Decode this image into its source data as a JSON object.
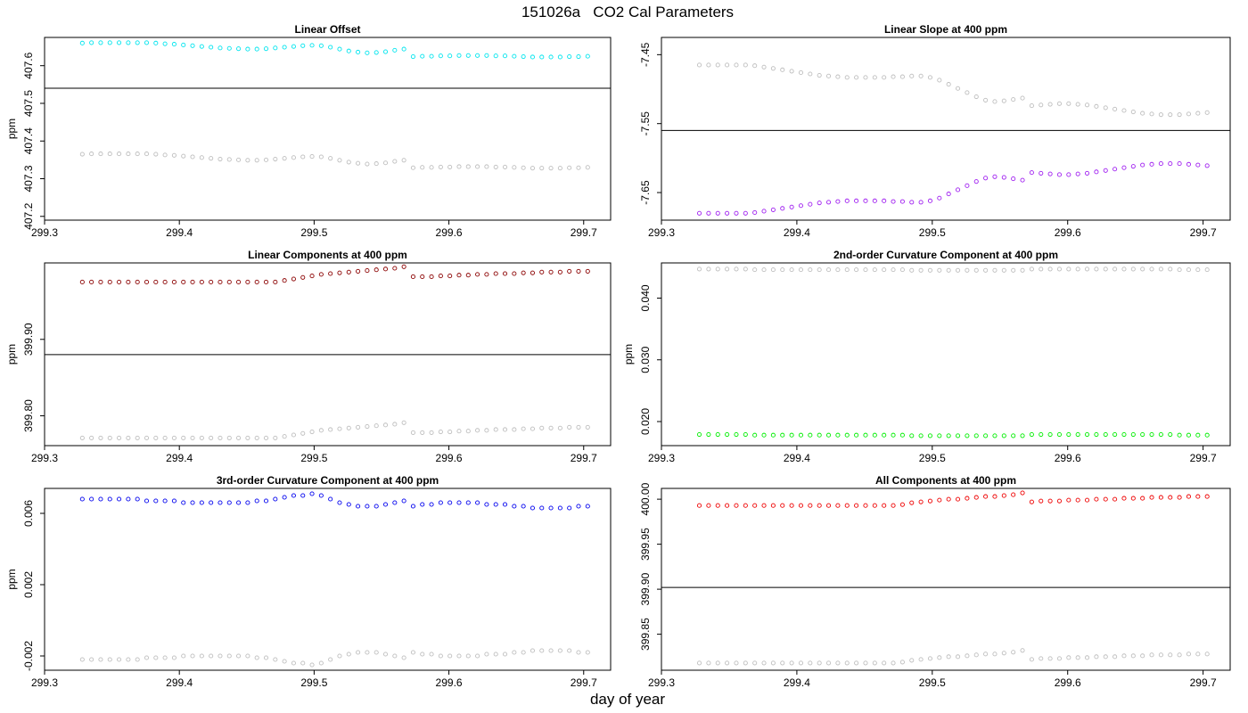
{
  "title": "151026a   CO2 Cal Parameters",
  "xlabel": "day of year",
  "chart_data": [
    {
      "type": "scatter",
      "title": "Linear Offset",
      "ylabel": "ppm",
      "xlim": [
        299.3,
        299.72
      ],
      "ylim": [
        407.19,
        407.675
      ],
      "xticks": [
        "299.3",
        "299.4",
        "299.5",
        "299.6",
        "299.7"
      ],
      "yticks": [
        "407.2",
        "407.3",
        "407.4",
        "407.5",
        "407.6"
      ],
      "hline": 407.54,
      "main_color": "#00e5ee",
      "shape": [
        407.66,
        407.661,
        407.661,
        407.661,
        407.661,
        407.661,
        407.661,
        407.661,
        407.66,
        407.658,
        407.657,
        407.655,
        407.653,
        407.651,
        407.649,
        407.647,
        407.646,
        407.645,
        407.644,
        407.644,
        407.645,
        407.647,
        407.649,
        407.651,
        407.653,
        407.654,
        407.653,
        407.649,
        407.644,
        407.639,
        407.636,
        407.634,
        407.635,
        407.637,
        407.641,
        407.644,
        407.624,
        407.625,
        407.625,
        407.626,
        407.626,
        407.627,
        407.627,
        407.627,
        407.627,
        407.626,
        407.626,
        407.625,
        407.624,
        407.623,
        407.623,
        407.623,
        407.623,
        407.624,
        407.624,
        407.625
      ],
      "shape_ref": 407.54,
      "gray_ref": 407.245,
      "gray_scale": 1.0
    },
    {
      "type": "scatter",
      "title": "Linear Slope at 400 ppm",
      "ylabel": "",
      "xlim": [
        299.3,
        299.72
      ],
      "ylim": [
        -7.69,
        -7.425
      ],
      "xticks": [
        "299.3",
        "299.4",
        "299.5",
        "299.6",
        "299.7"
      ],
      "yticks": [
        "-7.45",
        "-7.55",
        "-7.65"
      ],
      "yticks_values": [
        -7.45,
        -7.55,
        -7.65
      ],
      "hline": -7.56,
      "main_color": "#a020f0",
      "shape": [
        -7.68,
        -7.68,
        -7.68,
        -7.68,
        -7.68,
        -7.68,
        -7.679,
        -7.677,
        -7.675,
        -7.673,
        -7.671,
        -7.669,
        -7.667,
        -7.665,
        -7.664,
        -7.663,
        -7.662,
        -7.662,
        -7.662,
        -7.662,
        -7.662,
        -7.663,
        -7.663,
        -7.664,
        -7.664,
        -7.662,
        -7.658,
        -7.652,
        -7.646,
        -7.64,
        -7.634,
        -7.629,
        -7.627,
        -7.628,
        -7.63,
        -7.632,
        -7.621,
        -7.622,
        -7.623,
        -7.624,
        -7.624,
        -7.623,
        -7.622,
        -7.62,
        -7.618,
        -7.616,
        -7.614,
        -7.612,
        -7.61,
        -7.609,
        -7.608,
        -7.608,
        -7.608,
        -7.609,
        -7.61,
        -7.611
      ],
      "shape_ref": -7.68,
      "gray_ref": -7.465,
      "gray_scale": -1.0
    },
    {
      "type": "scatter",
      "title": "Linear Components at 400 ppm",
      "ylabel": "ppm",
      "xlim": [
        299.3,
        299.72
      ],
      "ylim": [
        399.761,
        400.0
      ],
      "xticks": [
        "299.3",
        "299.4",
        "299.5",
        "299.6",
        "299.7"
      ],
      "yticks": [
        "399.80",
        "399.90"
      ],
      "yticks_values": [
        399.8,
        399.9
      ],
      "hline": 399.88,
      "main_color": "#8b0000",
      "shape": [
        399.975,
        399.975,
        399.975,
        399.975,
        399.975,
        399.975,
        399.975,
        399.975,
        399.975,
        399.975,
        399.975,
        399.975,
        399.975,
        399.975,
        399.975,
        399.975,
        399.975,
        399.975,
        399.975,
        399.975,
        399.975,
        399.975,
        399.977,
        399.979,
        399.981,
        399.983,
        399.985,
        399.986,
        399.987,
        399.988,
        399.989,
        399.99,
        399.991,
        399.992,
        399.993,
        399.995,
        399.982,
        399.982,
        399.982,
        399.983,
        399.983,
        399.984,
        399.984,
        399.985,
        399.985,
        399.986,
        399.986,
        399.986,
        399.987,
        399.987,
        399.988,
        399.988,
        399.988,
        399.989,
        399.989,
        399.989
      ],
      "shape_ref": 399.975,
      "gray_ref": 399.771,
      "gray_scale": 1.0
    },
    {
      "type": "scatter",
      "title": "2nd-order Curvature Component at 400 ppm",
      "ylabel": "ppm",
      "xlim": [
        299.3,
        299.72
      ],
      "ylim": [
        0.0161,
        0.0457
      ],
      "xticks": [
        "299.3",
        "299.4",
        "299.5",
        "299.6",
        "299.7"
      ],
      "yticks": [
        "0.020",
        "0.030",
        "0.040"
      ],
      "yticks_values": [
        0.02,
        0.03,
        0.04
      ],
      "hline": null,
      "main_color": "#00ee00",
      "shape": [
        0.0179,
        0.0179,
        0.0179,
        0.0179,
        0.0179,
        0.0179,
        0.0178,
        0.0178,
        0.0178,
        0.0178,
        0.0178,
        0.0178,
        0.0178,
        0.0178,
        0.0178,
        0.0178,
        0.0178,
        0.0178,
        0.0178,
        0.0178,
        0.0178,
        0.0178,
        0.0178,
        0.0177,
        0.0177,
        0.0177,
        0.0177,
        0.0177,
        0.0177,
        0.0177,
        0.0177,
        0.0177,
        0.0177,
        0.0177,
        0.0177,
        0.0177,
        0.0179,
        0.0179,
        0.0179,
        0.0179,
        0.0179,
        0.0179,
        0.0179,
        0.0179,
        0.0179,
        0.0179,
        0.0179,
        0.0179,
        0.0179,
        0.0179,
        0.0179,
        0.0179,
        0.0178,
        0.0178,
        0.0178,
        0.0178
      ],
      "shape_ref": 0.0179,
      "gray_ref": 0.0447,
      "gray_scale": 1.0
    },
    {
      "type": "scatter",
      "title": "3rd-order Curvature Component at 400 ppm",
      "ylabel": "ppm",
      "xlim": [
        299.3,
        299.72
      ],
      "ylim": [
        -0.0028,
        0.0074
      ],
      "xticks": [
        "299.3",
        "299.4",
        "299.5",
        "299.6",
        "299.7"
      ],
      "yticks": [
        "-0.002",
        "0.002",
        "0.006"
      ],
      "yticks_values": [
        -0.002,
        0.002,
        0.006
      ],
      "hline": null,
      "main_color": "#0000ee",
      "shape": [
        0.0068,
        0.0068,
        0.0068,
        0.0068,
        0.0068,
        0.0068,
        0.0068,
        0.0067,
        0.0067,
        0.0067,
        0.0067,
        0.0066,
        0.0066,
        0.0066,
        0.0066,
        0.0066,
        0.0066,
        0.0066,
        0.0066,
        0.0067,
        0.0067,
        0.0068,
        0.0069,
        0.007,
        0.007,
        0.0071,
        0.007,
        0.0068,
        0.0066,
        0.0065,
        0.0064,
        0.0064,
        0.0064,
        0.0065,
        0.0066,
        0.0067,
        0.0064,
        0.0065,
        0.0065,
        0.0066,
        0.0066,
        0.0066,
        0.0066,
        0.0066,
        0.0065,
        0.0065,
        0.0065,
        0.0064,
        0.0064,
        0.0063,
        0.0063,
        0.0063,
        0.0063,
        0.0063,
        0.0064,
        0.0064
      ],
      "shape_ref": 0.0068,
      "gray_ref": -0.0022,
      "gray_scale": -1.0
    },
    {
      "type": "scatter",
      "title": "All Components at 400 ppm",
      "ylabel": "",
      "xlim": [
        299.3,
        299.72
      ],
      "ylim": [
        399.81,
        400.012
      ],
      "xticks": [
        "299.3",
        "299.4",
        "299.5",
        "299.6",
        "299.7"
      ],
      "yticks": [
        "399.85",
        "399.90",
        "399.95",
        "400.00"
      ],
      "yticks_values": [
        399.85,
        399.9,
        399.95,
        400.0
      ],
      "hline": 399.902,
      "main_color": "#ee0000",
      "shape": [
        399.993,
        399.993,
        399.993,
        399.993,
        399.993,
        399.993,
        399.993,
        399.993,
        399.993,
        399.993,
        399.993,
        399.993,
        399.993,
        399.993,
        399.993,
        399.993,
        399.993,
        399.993,
        399.993,
        399.993,
        399.993,
        399.993,
        399.994,
        399.996,
        399.997,
        399.998,
        399.999,
        400.0,
        400.0,
        400.001,
        400.002,
        400.003,
        400.003,
        400.004,
        400.005,
        400.007,
        399.997,
        399.998,
        399.998,
        399.998,
        399.999,
        399.999,
        399.999,
        400.0,
        400.0,
        400.0,
        400.001,
        400.001,
        400.001,
        400.002,
        400.002,
        400.002,
        400.002,
        400.003,
        400.003,
        400.003
      ],
      "shape_ref": 399.993,
      "gray_ref": 399.818,
      "gray_scale": 1.0
    }
  ]
}
